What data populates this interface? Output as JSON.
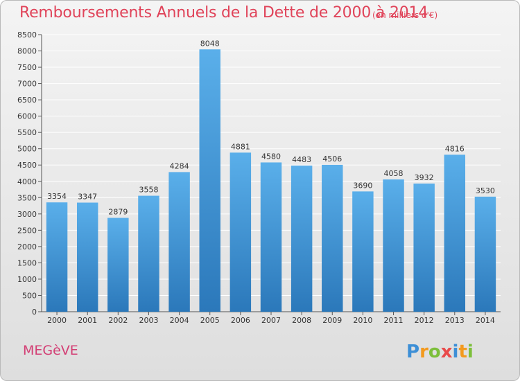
{
  "header": {
    "title": "Remboursements Annuels de la Dette de 2000 à 2014",
    "subtitle": "(en milliers d'€)"
  },
  "footer": {
    "town": "MEGèVE",
    "logo": "Proxiti"
  },
  "colors": {
    "title": "#e0445a",
    "bar_top": "#5aafea",
    "bar_bottom": "#2b78ba",
    "grid": "#ffffff"
  },
  "chart_data": {
    "type": "bar",
    "title": "Remboursements Annuels de la Dette de 2000 à 2014",
    "subtitle": "(en milliers d'€)",
    "categories": [
      "2000",
      "2001",
      "2002",
      "2003",
      "2004",
      "2005",
      "2006",
      "2007",
      "2008",
      "2009",
      "2010",
      "2011",
      "2012",
      "2013",
      "2014"
    ],
    "values": [
      3354,
      3347,
      2879,
      3558,
      4284,
      8048,
      4881,
      4580,
      4483,
      4506,
      3690,
      4058,
      3932,
      4816,
      3530
    ],
    "ylim": [
      0,
      8500
    ],
    "yticks": [
      0,
      500,
      1000,
      1500,
      2000,
      2500,
      3000,
      3500,
      4000,
      4500,
      5000,
      5500,
      6000,
      6500,
      7000,
      7500,
      8000,
      8500
    ],
    "grid": true,
    "data_labels": true,
    "legend": "none"
  }
}
